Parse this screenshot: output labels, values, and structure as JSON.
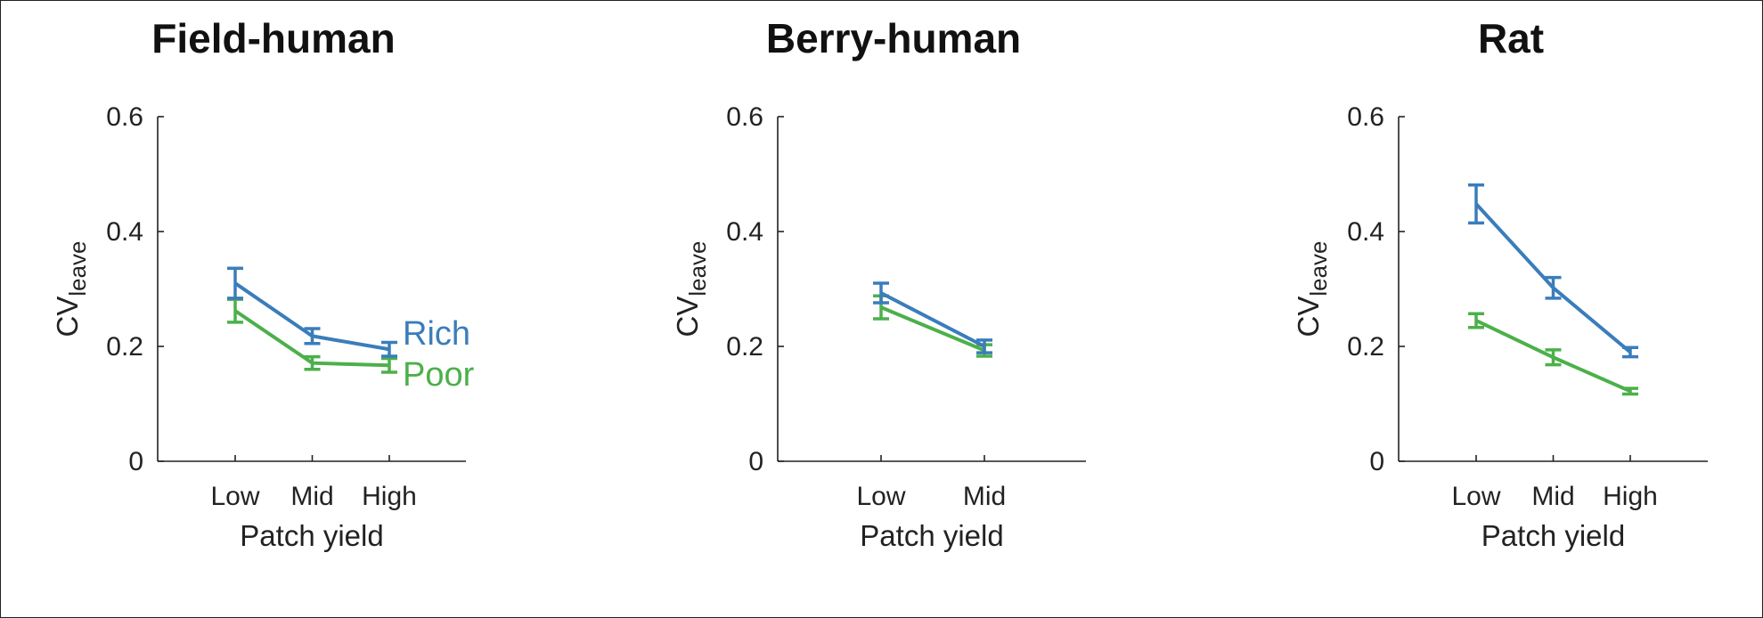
{
  "colors": {
    "Rich": "#3a7dbb",
    "Poor": "#4cb04a",
    "axis": "#222222"
  },
  "legend": {
    "rich_label": "Rich",
    "poor_label": "Poor",
    "placement": "inside-right of first panel"
  },
  "chart_data": [
    {
      "type": "line",
      "title": "Field-human",
      "xlabel": "Patch yield",
      "ylabel": "CV",
      "ylabel_subscript": "leave",
      "ylim": [
        0,
        0.6
      ],
      "yticks": [
        0,
        0.2,
        0.4,
        0.6
      ],
      "ytick_labels": [
        "0",
        "0.2",
        "0.4",
        "0.6"
      ],
      "categories": [
        "Low",
        "Mid",
        "High"
      ],
      "series": [
        {
          "name": "Rich",
          "values": [
            0.31,
            0.218,
            0.195
          ],
          "err": [
            0.026,
            0.013,
            0.012
          ]
        },
        {
          "name": "Poor",
          "values": [
            0.262,
            0.171,
            0.167
          ],
          "err": [
            0.02,
            0.011,
            0.012
          ]
        }
      ]
    },
    {
      "type": "line",
      "title": "Berry-human",
      "xlabel": "Patch yield",
      "ylabel": "CV",
      "ylabel_subscript": "leave",
      "ylim": [
        0,
        0.6
      ],
      "yticks": [
        0,
        0.2,
        0.4,
        0.6
      ],
      "ytick_labels": [
        "0",
        "0.2",
        "0.4",
        "0.6"
      ],
      "categories": [
        "Low",
        "Mid"
      ],
      "series": [
        {
          "name": "Rich",
          "values": [
            0.293,
            0.2
          ],
          "err": [
            0.017,
            0.011
          ]
        },
        {
          "name": "Poor",
          "values": [
            0.268,
            0.193
          ],
          "err": [
            0.02,
            0.01
          ]
        }
      ]
    },
    {
      "type": "line",
      "title": "Rat",
      "xlabel": "Patch yield",
      "ylabel": "CV",
      "ylabel_subscript": "leave",
      "ylim": [
        0,
        0.6
      ],
      "yticks": [
        0,
        0.2,
        0.4,
        0.6
      ],
      "ytick_labels": [
        "0",
        "0.2",
        "0.4",
        "0.6"
      ],
      "categories": [
        "Low",
        "Mid",
        "High"
      ],
      "series": [
        {
          "name": "Rich",
          "values": [
            0.448,
            0.302,
            0.19
          ],
          "err": [
            0.033,
            0.018,
            0.008
          ]
        },
        {
          "name": "Poor",
          "values": [
            0.245,
            0.181,
            0.122
          ],
          "err": [
            0.012,
            0.013,
            0.005
          ]
        }
      ]
    }
  ]
}
